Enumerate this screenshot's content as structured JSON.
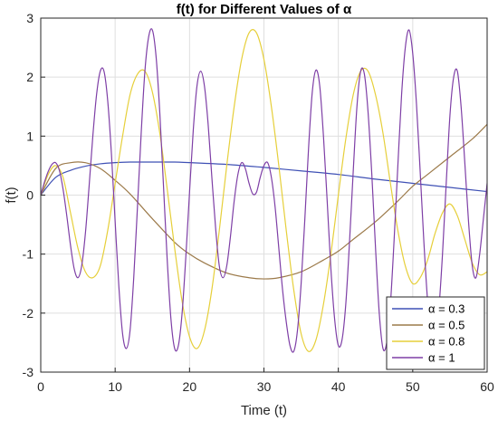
{
  "chart_data": {
    "type": "line",
    "title": "f(t) for Different Values of α",
    "xlabel": "Time (t)",
    "ylabel": "f(t)",
    "xlim": [
      0,
      60
    ],
    "ylim": [
      -3,
      3
    ],
    "xticks": [
      "0",
      "10",
      "20",
      "30",
      "40",
      "50",
      "60"
    ],
    "yticks": [
      "-3",
      "-2",
      "-1",
      "0",
      "1",
      "2",
      "3"
    ],
    "grid": true,
    "legend_position": "bottom-right",
    "series": [
      {
        "name": "α = 0.3",
        "color": "#3f51b5",
        "x": [
          0,
          2,
          4,
          6,
          8,
          10,
          12,
          15,
          18,
          20,
          25,
          30,
          35,
          40,
          45,
          50,
          55,
          60
        ],
        "y": [
          0,
          0.3,
          0.42,
          0.49,
          0.53,
          0.55,
          0.56,
          0.56,
          0.56,
          0.55,
          0.52,
          0.47,
          0.41,
          0.35,
          0.27,
          0.2,
          0.13,
          0.06
        ]
      },
      {
        "name": "α = 0.5",
        "color": "#9c7a4a",
        "x": [
          0,
          2,
          4,
          6,
          8,
          10,
          12,
          15,
          18,
          20,
          22,
          25,
          28,
          30,
          32,
          35,
          38,
          40,
          42,
          45,
          48,
          50,
          52,
          55,
          58,
          60
        ],
        "y": [
          0,
          0.45,
          0.55,
          0.55,
          0.45,
          0.25,
          0.02,
          -0.4,
          -0.8,
          -1.0,
          -1.15,
          -1.32,
          -1.4,
          -1.42,
          -1.4,
          -1.3,
          -1.1,
          -0.95,
          -0.75,
          -0.45,
          -0.1,
          0.15,
          0.35,
          0.65,
          0.95,
          1.2
        ]
      },
      {
        "name": "α = 0.8",
        "color": "#e6cf3a",
        "x": [
          0,
          1,
          2,
          3,
          4,
          5,
          6,
          7,
          8,
          9,
          10,
          11,
          12,
          13,
          14,
          15,
          16,
          17,
          18,
          19,
          20,
          21,
          22,
          23,
          24,
          25,
          26,
          27,
          28,
          29,
          30,
          31,
          32,
          33,
          34,
          35,
          36,
          37,
          38,
          39,
          40,
          41,
          42,
          43,
          44,
          45,
          46,
          47,
          48,
          49,
          50,
          51,
          52,
          53,
          54,
          55,
          56,
          57,
          58,
          59,
          60
        ],
        "y": [
          0,
          0.35,
          0.5,
          0.3,
          -0.3,
          -0.9,
          -1.3,
          -1.4,
          -1.2,
          -0.6,
          0.2,
          1.0,
          1.7,
          2.05,
          2.1,
          1.75,
          1.05,
          0.1,
          -0.9,
          -1.8,
          -2.4,
          -2.6,
          -2.3,
          -1.6,
          -0.6,
          0.5,
          1.5,
          2.3,
          2.75,
          2.75,
          2.3,
          1.5,
          0.5,
          -0.6,
          -1.6,
          -2.35,
          -2.65,
          -2.45,
          -1.85,
          -1.0,
          0.0,
          0.95,
          1.7,
          2.1,
          2.1,
          1.7,
          1.05,
          0.2,
          -0.6,
          -1.2,
          -1.5,
          -1.4,
          -1.1,
          -0.65,
          -0.3,
          -0.15,
          -0.35,
          -0.75,
          -1.15,
          -1.35,
          -1.3
        ]
      },
      {
        "name": "α = 1",
        "color": "#7e3fa6",
        "x": [
          0,
          0.5,
          1,
          1.5,
          2,
          2.5,
          3,
          3.5,
          4,
          4.5,
          5,
          5.5,
          6,
          6.5,
          7,
          7.5,
          8,
          8.5,
          9,
          9.5,
          10,
          10.5,
          11,
          11.5,
          12,
          12.5,
          13,
          13.5,
          14,
          14.5,
          15,
          15.5,
          16,
          16.5,
          17,
          17.5,
          18,
          18.5,
          19,
          19.5,
          20,
          20.5,
          21,
          21.5,
          22,
          22.5,
          23,
          23.5,
          24,
          24.5,
          25,
          25.5,
          26,
          26.5,
          27,
          27.5,
          28,
          28.5,
          29,
          29.5,
          30,
          30.5,
          31,
          31.5,
          32,
          32.5,
          33,
          33.5,
          34,
          34.5,
          35,
          35.5,
          36,
          36.5,
          37,
          37.5,
          38,
          38.5,
          39,
          39.5,
          40,
          40.5,
          41,
          41.5,
          42,
          42.5,
          43,
          43.5,
          44,
          44.5,
          45,
          45.5,
          46,
          46.5,
          47,
          47.5,
          48,
          48.5,
          49,
          49.5,
          50,
          50.5,
          51,
          51.5,
          52,
          52.5,
          53,
          53.5,
          54,
          54.5,
          55,
          55.5,
          56,
          56.5,
          57,
          57.5,
          58,
          58.5,
          59,
          59.5,
          60
        ],
        "y": [
          0.0,
          0.22,
          0.4,
          0.52,
          0.55,
          0.42,
          0.1,
          -0.35,
          -0.85,
          -1.25,
          -1.4,
          -1.2,
          -0.65,
          0.15,
          1.0,
          1.7,
          2.1,
          2.1,
          1.6,
          0.7,
          -0.45,
          -1.55,
          -2.35,
          -2.6,
          -2.3,
          -1.4,
          -0.2,
          1.05,
          2.1,
          2.68,
          2.8,
          2.35,
          1.4,
          0.15,
          -1.1,
          -2.1,
          -2.6,
          -2.55,
          -2.0,
          -1.05,
          0.05,
          1.1,
          1.85,
          2.1,
          1.85,
          1.2,
          0.3,
          -0.55,
          -1.2,
          -1.4,
          -1.2,
          -0.7,
          -0.1,
          0.35,
          0.55,
          0.45,
          0.2,
          0.02,
          0.05,
          0.3,
          0.5,
          0.55,
          0.3,
          -0.2,
          -0.9,
          -1.6,
          -2.15,
          -2.55,
          -2.65,
          -2.3,
          -1.5,
          -0.4,
          0.8,
          1.75,
          2.12,
          1.85,
          1.0,
          -0.1,
          -1.25,
          -2.1,
          -2.55,
          -2.45,
          -1.85,
          -0.8,
          0.4,
          1.5,
          2.1,
          2.05,
          1.4,
          0.35,
          -0.9,
          -2.0,
          -2.6,
          -2.5,
          -1.85,
          -0.75,
          0.5,
          1.7,
          2.5,
          2.8,
          2.4,
          1.55,
          0.4,
          -0.8,
          -1.8,
          -2.45,
          -2.5,
          -1.95,
          -1.0,
          0.2,
          1.35,
          2.0,
          2.1,
          1.5,
          0.55,
          -0.45,
          -1.2,
          -1.4,
          -1.0,
          -0.4,
          0.2
        ]
      }
    ]
  }
}
